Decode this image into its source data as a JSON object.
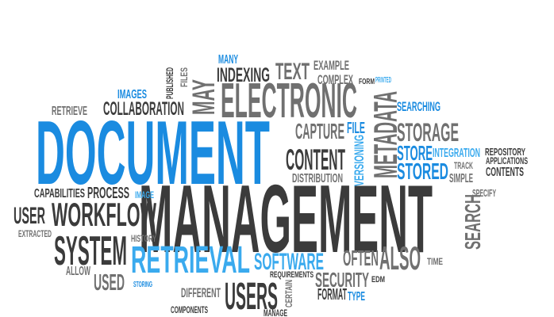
{
  "words": [
    "DOCUMENT",
    "MANAGEMENT",
    "ELECTRONIC",
    "RETRIEVAL",
    "SYSTEM",
    "WORKFLOW",
    "USERS",
    "CONTENT",
    "STORAGE",
    "STORE",
    "STORED",
    "SOFTWARE",
    "SECURITY",
    "OFTEN",
    "ALSO",
    "METADATA",
    "SEARCH",
    "CAPTURE",
    "INDEXING",
    "TEXT",
    "EXAMPLE",
    "COMPLEX",
    "MANY",
    "COLLABORATION",
    "RETRIEVE",
    "IMAGES",
    "MAY",
    "USER",
    "PROCESS",
    "CAPABILITIES",
    "EXTRACTED",
    "ALLOW",
    "USED",
    "DIFFERENT",
    "COMPONENTS",
    "FORMAT",
    "TYPE",
    "FILE",
    "SEARCHING",
    "INTEGRATION",
    "DISTRIBUTION",
    "SIMPLE",
    "CONTENTS",
    "REPOSITORY",
    "APPLICATIONS",
    "SPECIFY",
    "VERSIONING",
    "REQUIREMENTS",
    "HISTORY",
    "IMAGE",
    "EDM",
    "TIME",
    "CERTAIN",
    "MANAGE",
    "FILES",
    "PUBLISHED",
    "TRACK",
    "STORING",
    "PRINTED",
    "FORM"
  ]
}
